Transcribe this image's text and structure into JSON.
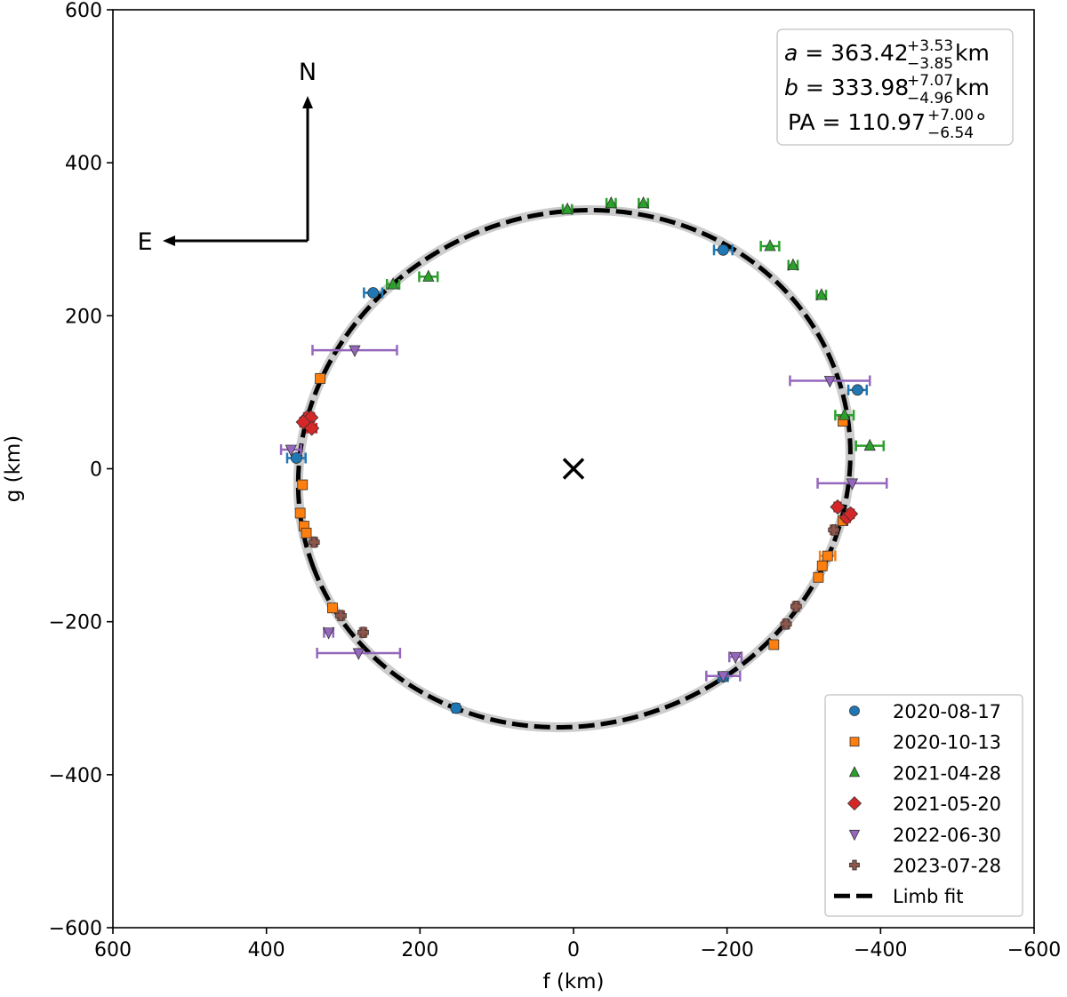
{
  "chart_data": {
    "type": "scatter",
    "title": "",
    "xlabel": "f (km)",
    "ylabel": "g (km)",
    "xlim": [
      600,
      -600
    ],
    "ylim": [
      -600,
      600
    ],
    "x_inverted": true,
    "xticks": [
      600,
      400,
      200,
      0,
      -200,
      -400,
      -600
    ],
    "yticks": [
      600,
      400,
      200,
      0,
      -200,
      -400,
      -600
    ],
    "xtick_labels": [
      "600",
      "400",
      "200",
      "0",
      "−200",
      "−400",
      "−600"
    ],
    "ytick_labels": [
      "600",
      "400",
      "200",
      "0",
      "−200",
      "−400",
      "−600"
    ],
    "grid": false,
    "legend_position": "lower right",
    "compass": {
      "north_label": "N",
      "east_label": "E"
    },
    "center_marker": {
      "f": 0,
      "g": 0,
      "symbol": "x"
    },
    "fit_parameters": {
      "a": {
        "label": "a",
        "value": "363.42",
        "plus": "+3.53",
        "minus": "−3.85",
        "unit": "km"
      },
      "b": {
        "label": "b",
        "value": "333.98",
        "plus": "+7.07",
        "minus": "−4.96",
        "unit": "km"
      },
      "PA": {
        "label": "PA",
        "value": "110.97",
        "plus": "+7.00",
        "minus": "−6.54",
        "unit": "°"
      }
    },
    "limb_fit": {
      "label": "Limb fit",
      "type": "ellipse",
      "center_f": -1,
      "center_g": 0,
      "a_km": 363.42,
      "b_km": 333.98,
      "pa_deg": 110.97,
      "style": "dashed black over light gray"
    },
    "series": [
      {
        "name": "2020-08-17",
        "marker": "circle",
        "color": "#1f77b4",
        "points": [
          {
            "f": 261,
            "g": 230,
            "xerr": 12
          },
          {
            "f": -195,
            "g": 286,
            "xerr": 12
          },
          {
            "f": -370,
            "g": 103,
            "xerr": 12
          },
          {
            "f": 361,
            "g": 14,
            "xerr": 12
          },
          {
            "f": -195,
            "g": -272,
            "xerr": 6
          },
          {
            "f": 153,
            "g": -313,
            "xerr": 4
          }
        ]
      },
      {
        "name": "2020-10-13",
        "marker": "square",
        "color": "#ff7f0e",
        "points": [
          {
            "f": 330,
            "g": 118,
            "xerr": 4
          },
          {
            "f": 353,
            "g": -21,
            "xerr": 4
          },
          {
            "f": 356,
            "g": -58,
            "xerr": 4
          },
          {
            "f": 351,
            "g": -75,
            "xerr": 4
          },
          {
            "f": 348,
            "g": -84,
            "xerr": 4
          },
          {
            "f": -351,
            "g": 62,
            "xerr": 4
          },
          {
            "f": -351,
            "g": -68,
            "xerr": 4
          },
          {
            "f": -331,
            "g": -114,
            "xerr": 10
          },
          {
            "f": -324,
            "g": -127,
            "xerr": 4
          },
          {
            "f": -319,
            "g": -142,
            "xerr": 4
          },
          {
            "f": -261,
            "g": -230,
            "xerr": 4
          },
          {
            "f": 314,
            "g": -182,
            "xerr": 4
          }
        ]
      },
      {
        "name": "2021-04-28",
        "marker": "triangle-up",
        "color": "#2ca02c",
        "points": [
          {
            "f": 8,
            "g": 339,
            "xerr": 6
          },
          {
            "f": -49,
            "g": 347,
            "xerr": 6
          },
          {
            "f": -91,
            "g": 347,
            "xerr": 6
          },
          {
            "f": -256,
            "g": 291,
            "xerr": 12
          },
          {
            "f": -286,
            "g": 266,
            "xerr": 6
          },
          {
            "f": -323,
            "g": 227,
            "xerr": 6
          },
          {
            "f": 189,
            "g": 251,
            "xerr": 12
          },
          {
            "f": 235,
            "g": 241,
            "xerr": 8
          },
          {
            "f": -353,
            "g": 70,
            "xerr": 12
          },
          {
            "f": -386,
            "g": 30,
            "xerr": 18
          }
        ]
      },
      {
        "name": "2021-05-20",
        "marker": "diamond",
        "color": "#d62728",
        "points": [
          {
            "f": 347,
            "g": 67,
            "xerr": 4
          },
          {
            "f": 342,
            "g": 67,
            "xerr": 4
          },
          {
            "f": 352,
            "g": 61,
            "xerr": 4
          },
          {
            "f": 341,
            "g": 53,
            "xerr": 6
          },
          {
            "f": -344,
            "g": -50,
            "xerr": 4
          },
          {
            "f": -356,
            "g": -64,
            "xerr": 4
          },
          {
            "f": -361,
            "g": -59,
            "xerr": 4
          }
        ]
      },
      {
        "name": "2022-06-30",
        "marker": "triangle-down",
        "color": "#9467bd",
        "points": [
          {
            "f": 285,
            "g": 155,
            "xerr": 55
          },
          {
            "f": -334,
            "g": 115,
            "xerr": 52
          },
          {
            "f": 368,
            "g": 25,
            "xerr": 13
          },
          {
            "f": -363,
            "g": -19,
            "xerr": 45
          },
          {
            "f": 319,
            "g": -214,
            "xerr": 6
          },
          {
            "f": 280,
            "g": -241,
            "xerr": 54
          },
          {
            "f": -211,
            "g": -246,
            "xerr": 8
          },
          {
            "f": -195,
            "g": -271,
            "xerr": 22
          }
        ]
      },
      {
        "name": "2023-07-28",
        "marker": "plus-filled",
        "color": "#8c564b",
        "points": [
          {
            "f": 338,
            "g": -96,
            "xerr": 4
          },
          {
            "f": 303,
            "g": -192,
            "xerr": 4
          },
          {
            "f": 274,
            "g": -214,
            "xerr": 4
          },
          {
            "f": -339,
            "g": -80,
            "xerr": 4
          },
          {
            "f": -290,
            "g": -180,
            "xerr": 4
          },
          {
            "f": -277,
            "g": -203,
            "xerr": 4
          }
        ]
      }
    ]
  },
  "legend": {
    "entries": [
      "2020-08-17",
      "2020-10-13",
      "2021-04-28",
      "2021-05-20",
      "2022-06-30",
      "2023-07-28",
      "Limb fit"
    ]
  }
}
